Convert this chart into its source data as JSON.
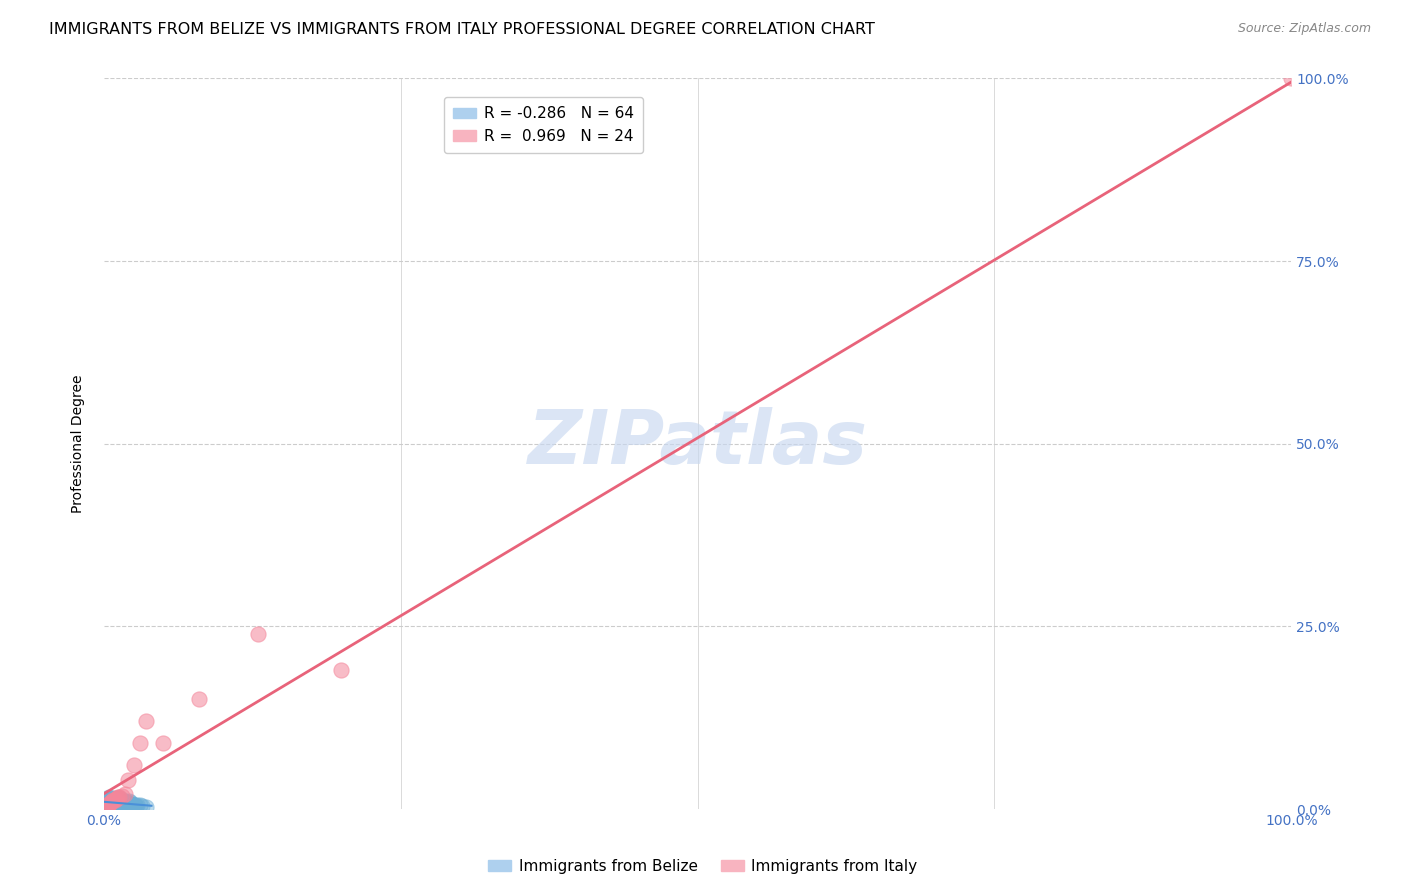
{
  "title": "IMMIGRANTS FROM BELIZE VS IMMIGRANTS FROM ITALY PROFESSIONAL DEGREE CORRELATION CHART",
  "source": "Source: ZipAtlas.com",
  "ylabel": "Professional Degree",
  "watermark": "ZIPatlas",
  "belize_color": "#6baed6",
  "italy_color": "#f4869a",
  "italy_line_color": "#e8637a",
  "belize_line_color": "#4a90d9",
  "belize_R": -0.286,
  "belize_N": 64,
  "italy_R": 0.969,
  "italy_N": 24,
  "xlim": [
    0,
    1
  ],
  "ylim": [
    0,
    1
  ],
  "belize_points_x": [
    0.001,
    0.002,
    0.002,
    0.003,
    0.003,
    0.003,
    0.004,
    0.004,
    0.004,
    0.005,
    0.005,
    0.005,
    0.006,
    0.006,
    0.006,
    0.007,
    0.007,
    0.007,
    0.008,
    0.008,
    0.008,
    0.009,
    0.009,
    0.009,
    0.01,
    0.01,
    0.01,
    0.011,
    0.011,
    0.011,
    0.012,
    0.012,
    0.012,
    0.013,
    0.013,
    0.013,
    0.014,
    0.014,
    0.014,
    0.015,
    0.015,
    0.016,
    0.016,
    0.017,
    0.017,
    0.018,
    0.018,
    0.019,
    0.019,
    0.02,
    0.02,
    0.021,
    0.021,
    0.022,
    0.022,
    0.023,
    0.024,
    0.025,
    0.026,
    0.027,
    0.028,
    0.03,
    0.032,
    0.035
  ],
  "belize_points_y": [
    0.005,
    0.008,
    0.012,
    0.003,
    0.01,
    0.015,
    0.006,
    0.011,
    0.016,
    0.004,
    0.009,
    0.014,
    0.003,
    0.008,
    0.013,
    0.005,
    0.01,
    0.015,
    0.004,
    0.009,
    0.014,
    0.003,
    0.008,
    0.013,
    0.005,
    0.01,
    0.015,
    0.004,
    0.009,
    0.014,
    0.003,
    0.008,
    0.013,
    0.005,
    0.01,
    0.015,
    0.004,
    0.009,
    0.014,
    0.006,
    0.011,
    0.005,
    0.01,
    0.004,
    0.009,
    0.006,
    0.011,
    0.005,
    0.01,
    0.004,
    0.009,
    0.006,
    0.011,
    0.005,
    0.01,
    0.004,
    0.007,
    0.006,
    0.005,
    0.004,
    0.006,
    0.005,
    0.004,
    0.003
  ],
  "italy_points_x": [
    0.001,
    0.002,
    0.003,
    0.004,
    0.005,
    0.006,
    0.007,
    0.008,
    0.009,
    0.01,
    0.011,
    0.012,
    0.013,
    0.015,
    0.018,
    0.02,
    0.025,
    0.03,
    0.035,
    0.05,
    0.08,
    0.13,
    0.2,
    1.0
  ],
  "italy_points_y": [
    0.003,
    0.005,
    0.006,
    0.007,
    0.009,
    0.01,
    0.011,
    0.012,
    0.013,
    0.014,
    0.015,
    0.016,
    0.017,
    0.018,
    0.02,
    0.04,
    0.06,
    0.09,
    0.12,
    0.09,
    0.15,
    0.24,
    0.19,
    1.0
  ],
  "grid_color": "#cccccc",
  "background_color": "#ffffff",
  "title_fontsize": 11.5,
  "axis_label_fontsize": 10,
  "tick_fontsize": 10,
  "legend_belize_label": "R = -0.286   N = 64",
  "legend_italy_label": "R =  0.969   N = 24",
  "bottom_legend_belize": "Immigrants from Belize",
  "bottom_legend_italy": "Immigrants from Italy"
}
